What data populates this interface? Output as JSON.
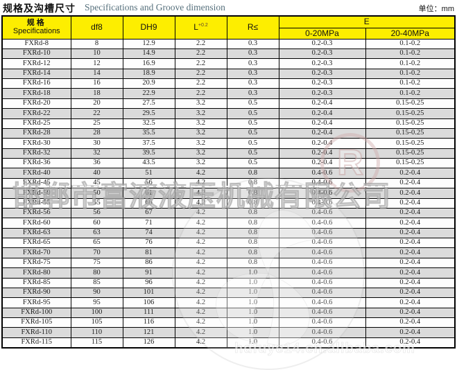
{
  "header": {
    "title_zh": "规格及沟槽尺寸",
    "title_en": "Specifications and Groove dimension",
    "unit": "单位：mm"
  },
  "table": {
    "col_headers": {
      "spec_zh": "规格",
      "spec_en": "Specifications",
      "df8": "df8",
      "dh9": "DH9",
      "l_base": "L",
      "l_sup": "+0.2",
      "r": "R≤",
      "e": "E",
      "e_low": "0-20MPa",
      "e_high": "20-40MPa"
    },
    "rows": [
      [
        "FXRd-8",
        "8",
        "12.9",
        "2.2",
        "0.3",
        "0.2-0.3",
        "0.1-0.2"
      ],
      [
        "FXRd-10",
        "10",
        "14.9",
        "2.2",
        "0.3",
        "0.2-0.3",
        "0.1-0.2"
      ],
      [
        "FXRd-12",
        "12",
        "16.9",
        "2.2",
        "0.3",
        "0.2-0.3",
        "0.1-0.2"
      ],
      [
        "FXRd-14",
        "14",
        "18.9",
        "2.2",
        "0.3",
        "0.2-0.3",
        "0.1-0.2"
      ],
      [
        "FXRd-16",
        "16",
        "20.9",
        "2.2",
        "0.3",
        "0.2-0.3",
        "0.1-0.2"
      ],
      [
        "FXRd-18",
        "18",
        "22.9",
        "2.2",
        "0.3",
        "0.2-0.3",
        "0.1-0.2"
      ],
      [
        "FXRd-20",
        "20",
        "27.5",
        "3.2",
        "0.5",
        "0.2-0.4",
        "0.15-0.25"
      ],
      [
        "FXRd-22",
        "22",
        "29.5",
        "3.2",
        "0.5",
        "0.2-0.4",
        "0.15-0.25"
      ],
      [
        "FXRd-25",
        "25",
        "32.5",
        "3.2",
        "0.5",
        "0.2-0.4",
        "0.15-0.25"
      ],
      [
        "FXRd-28",
        "28",
        "35.5",
        "3.2",
        "0.5",
        "0.2-0.4",
        "0.15-0.25"
      ],
      [
        "FXRd-30",
        "30",
        "37.5",
        "3.2",
        "0.5",
        "0.2-0.4",
        "0.15-0.25"
      ],
      [
        "FXRd-32",
        "32",
        "39.5",
        "3.2",
        "0.5",
        "0.2-0.4",
        "0.15-0.25"
      ],
      [
        "FXRd-36",
        "36",
        "43.5",
        "3.2",
        "0.5",
        "0.2-0.4",
        "0.15-0.25"
      ],
      [
        "FXRd-40",
        "40",
        "51",
        "4.2",
        "0.8",
        "0.4-0.6",
        "0.2-0.4"
      ],
      [
        "FXRd-45",
        "45",
        "56",
        "4.2",
        "0.8",
        "0.4-0.6",
        "0.2-0.4"
      ],
      [
        "FXRd-50",
        "50",
        "61",
        "4.2",
        "0.8",
        "0.4-0.6",
        "0.2-0.4"
      ],
      [
        "FXRd-55",
        "55",
        "66",
        "4.2",
        "0.8",
        "0.4-0.6",
        "0.2-0.4"
      ],
      [
        "FXRd-56",
        "56",
        "67",
        "4.2",
        "0.8",
        "0.4-0.6",
        "0.2-0.4"
      ],
      [
        "FXRd-60",
        "60",
        "71",
        "4.2",
        "0.8",
        "0.4-0.6",
        "0.2-0.4"
      ],
      [
        "FXRd-63",
        "63",
        "74",
        "4.2",
        "0.8",
        "0.4-0.6",
        "0.2-0.4"
      ],
      [
        "FXRd-65",
        "65",
        "76",
        "4.2",
        "0.8",
        "0.4-0.6",
        "0.2-0.4"
      ],
      [
        "FXRd-70",
        "70",
        "81",
        "4.2",
        "0.8",
        "0.4-0.6",
        "0.2-0.4"
      ],
      [
        "FXRd-75",
        "75",
        "86",
        "4.2",
        "0.8",
        "0.4-0.6",
        "0.2-0.4"
      ],
      [
        "FXRd-80",
        "80",
        "91",
        "4.2",
        "1.0",
        "0.4-0.6",
        "0.2-0.4"
      ],
      [
        "FXRd-85",
        "85",
        "96",
        "4.2",
        "1.0",
        "0.4-0.6",
        "0.2-0.4"
      ],
      [
        "FXRd-90",
        "90",
        "101",
        "4.2",
        "1.0",
        "0.4-0.6",
        "0.2-0.4"
      ],
      [
        "FXRd-95",
        "95",
        "106",
        "4.2",
        "1.0",
        "0.4-0.6",
        "0.2-0.4"
      ],
      [
        "FXRd-100",
        "100",
        "111",
        "4.2",
        "1.0",
        "0.4-0.6",
        "0.2-0.4"
      ],
      [
        "FXRd-105",
        "105",
        "116",
        "4.2",
        "1.0",
        "0.4-0.6",
        "0.2-0.4"
      ],
      [
        "FXRd-110",
        "110",
        "121",
        "4.2",
        "1.0",
        "0.4-0.6",
        "0.2-0.4"
      ],
      [
        "FXRd-115",
        "115",
        "126",
        "4.2",
        "1.0",
        "0.4-0.6",
        "0.2-0.4"
      ]
    ]
  },
  "watermarks": {
    "company": "邯郸市富液液压机械有限公司",
    "url": "hdfuye14.cn.alibaba.com",
    "registered_mark": "R"
  },
  "colors": {
    "header_yellow": "#fdee00",
    "row_alt_gray": "#dbdbdb",
    "border_black": "#000000",
    "title_en_color": "#56707c"
  }
}
